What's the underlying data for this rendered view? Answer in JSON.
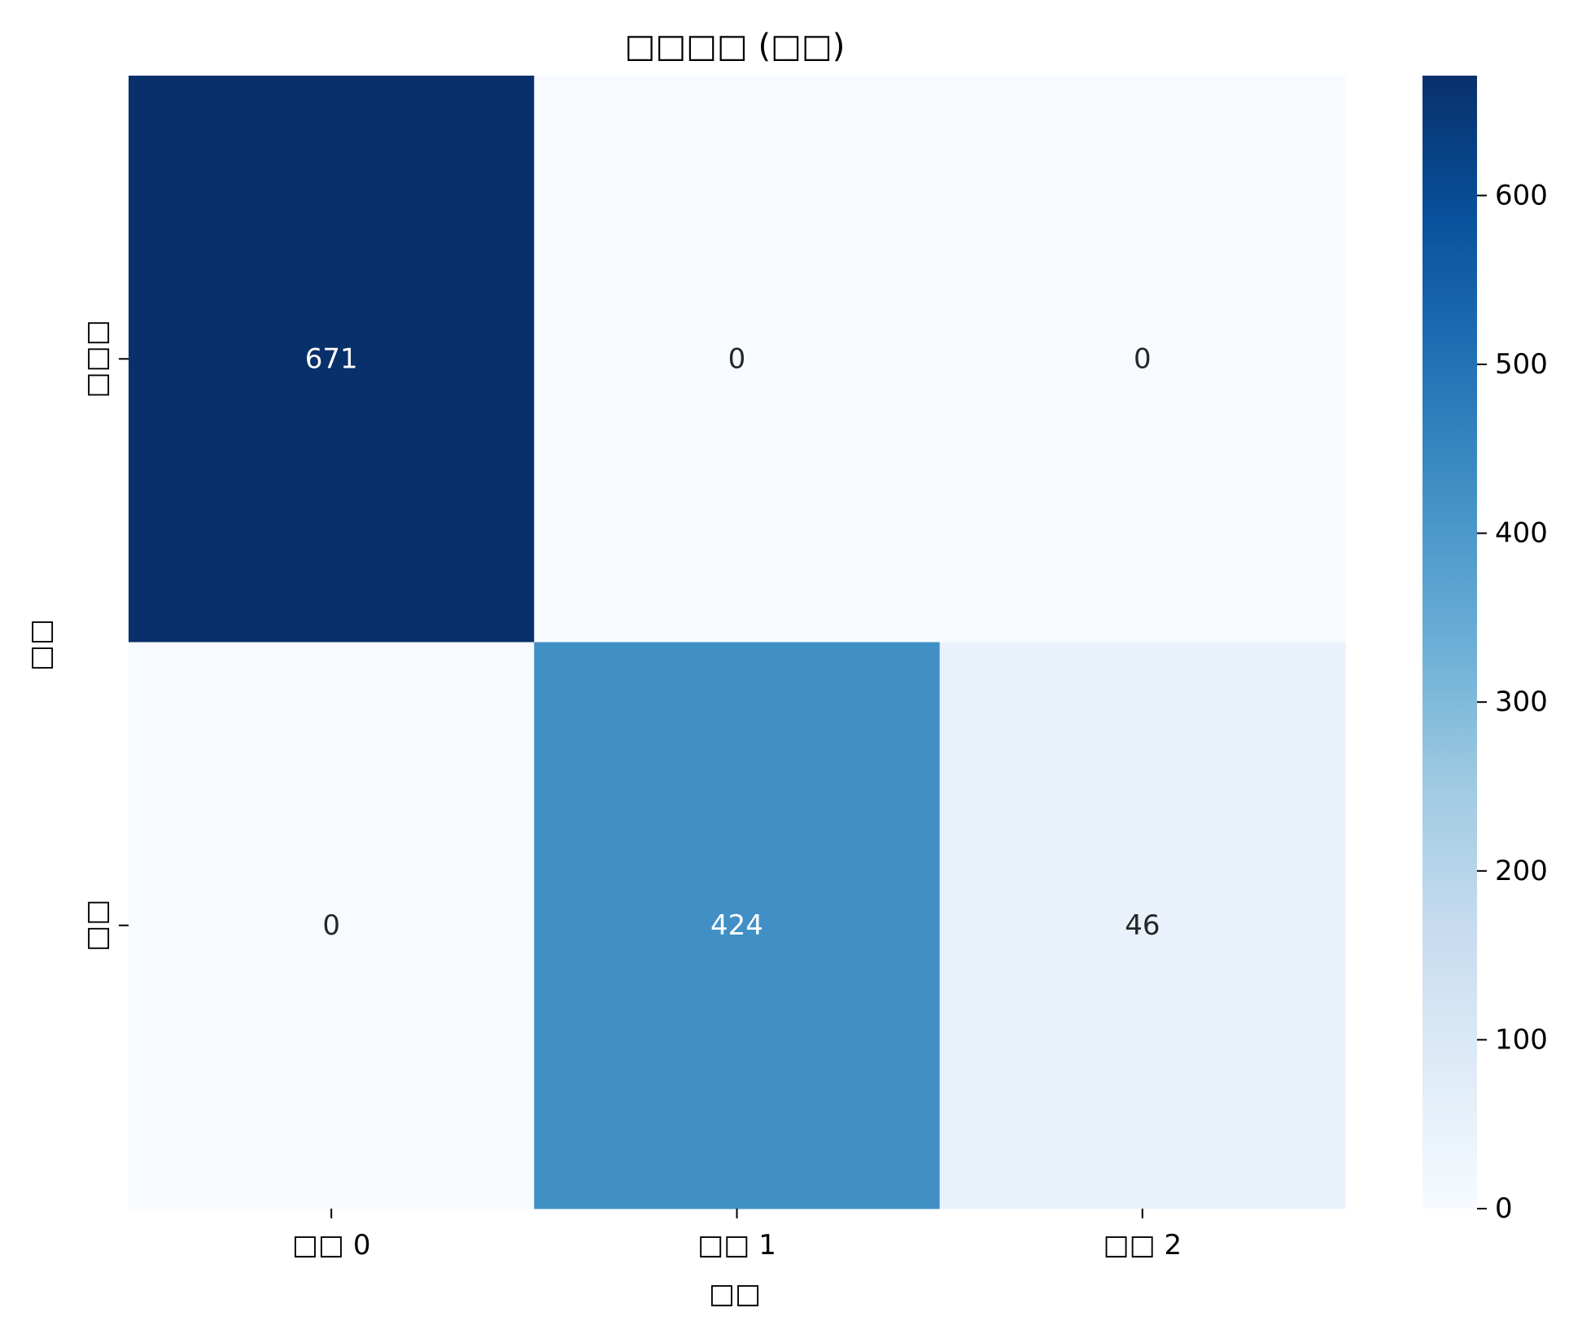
{
  "chart_data": {
    "type": "heatmap",
    "title": "□□□□ (□□)",
    "xlabel": "□□",
    "ylabel": "□□",
    "x_categories": [
      "□□ 0",
      "□□ 1",
      "□□ 2"
    ],
    "y_categories": [
      "□□□",
      "□□"
    ],
    "values": [
      [
        671,
        0,
        0
      ],
      [
        0,
        424,
        46
      ]
    ],
    "colormap": "Blues",
    "color_range": [
      0,
      671
    ],
    "colorbar_ticks": [
      0,
      100,
      200,
      300,
      400,
      500,
      600
    ],
    "annotations": true,
    "grid": false
  }
}
